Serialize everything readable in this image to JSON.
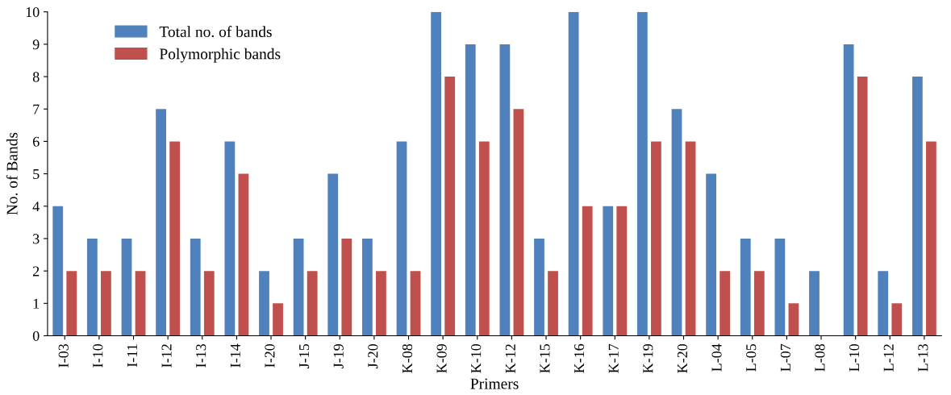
{
  "chart_data": {
    "type": "bar",
    "xlabel": "Primers",
    "ylabel": "No. of Bands",
    "categories": [
      "I-03",
      "I-10",
      "I-11",
      "I-12",
      "I-13",
      "I-14",
      "I-20",
      "J-15",
      "J-19",
      "J-20",
      "K-08",
      "K-09",
      "K-10",
      "K-12",
      "K-15",
      "K-16",
      "K-17",
      "K-19",
      "K-20",
      "L-04",
      "L-05",
      "L-07",
      "L-08",
      "L-10",
      "L-12",
      "L-13"
    ],
    "series": [
      {
        "name": "Total no. of bands",
        "color": "#4f81bd",
        "values": [
          4,
          3,
          3,
          7,
          3,
          6,
          2,
          3,
          5,
          3,
          6,
          10,
          9,
          9,
          3,
          10,
          4,
          10,
          7,
          5,
          3,
          3,
          2,
          9,
          2,
          8
        ]
      },
      {
        "name": "Polymorphic bands",
        "color": "#c0504d",
        "values": [
          2,
          2,
          2,
          6,
          2,
          5,
          1,
          2,
          3,
          2,
          2,
          8,
          6,
          7,
          2,
          4,
          4,
          6,
          6,
          2,
          2,
          1,
          0,
          8,
          1,
          6
        ]
      }
    ],
    "ylim": [
      0,
      10
    ],
    "yticks": [
      0,
      1,
      2,
      3,
      4,
      5,
      6,
      7,
      8,
      9,
      10
    ],
    "grid": false,
    "legend": "top left"
  }
}
